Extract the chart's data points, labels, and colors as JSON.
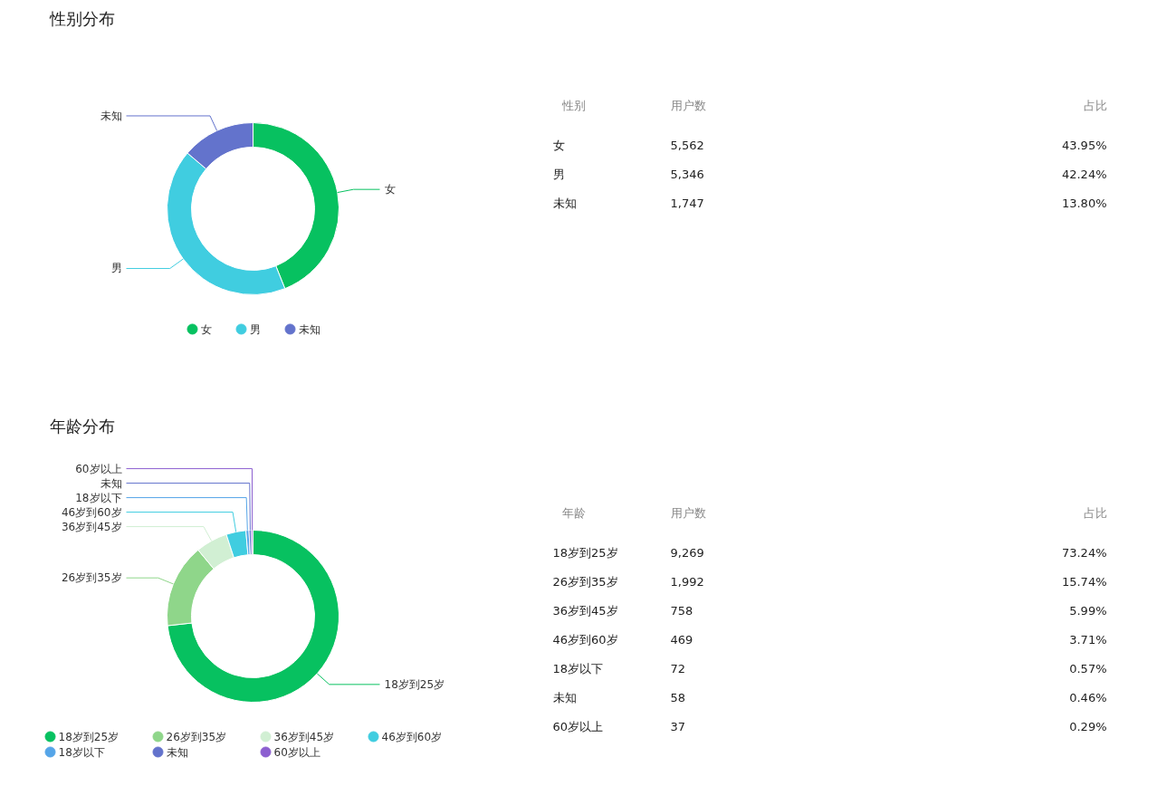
{
  "chart_data": [
    {
      "type": "donut",
      "title": "性别分布",
      "categories": [
        "女",
        "男",
        "未知"
      ],
      "values": [
        43.95,
        42.24,
        13.8
      ],
      "colors": [
        "#07c160",
        "#40cde0",
        "#6373cc"
      ],
      "legend": "bottom"
    },
    {
      "type": "other",
      "categories": [
        "女",
        "男",
        "未知"
      ],
      "annotations": [
        "性别"
      ],
      "data_labels": true,
      "series": [
        {
          "name": "用户数",
          "values": [
            5562,
            5346,
            1747
          ],
          "value_labels": [
            "5,562",
            "5,346",
            "1,747"
          ]
        },
        {
          "name": "占比",
          "values": [
            43.95,
            42.24,
            13.8
          ],
          "value_labels": [
            "43.95%",
            "42.24%",
            "13.80%"
          ]
        }
      ]
    },
    {
      "type": "donut",
      "title": "年龄分布",
      "categories": [
        "18岁到25岁",
        "26岁到35岁",
        "36岁到45岁",
        "46岁到60岁",
        "18岁以下",
        "未知",
        "60岁以上"
      ],
      "values": [
        73.24,
        15.74,
        5.99,
        3.71,
        0.57,
        0.46,
        0.29
      ],
      "colors": [
        "#07c160",
        "#8fd68a",
        "#d1efd3",
        "#40cde0",
        "#55a5e8",
        "#6373cc",
        "#8c5fd0"
      ],
      "legend": "bottom"
    },
    {
      "type": "other",
      "categories": [
        "18岁到25岁",
        "26岁到35岁",
        "36岁到45岁",
        "46岁到60岁",
        "18岁以下",
        "未知",
        "60岁以上"
      ],
      "annotations": [
        "年龄"
      ],
      "data_labels": true,
      "series": [
        {
          "name": "用户数",
          "values": [
            9269,
            1992,
            758,
            469,
            72,
            58,
            37
          ],
          "value_labels": [
            "9,269",
            "1,992",
            "758",
            "469",
            "72",
            "58",
            "37"
          ]
        },
        {
          "name": "占比",
          "values": [
            73.24,
            15.74,
            5.99,
            3.71,
            0.57,
            0.46,
            0.29
          ],
          "value_labels": [
            "73.24%",
            "15.74%",
            "5.99%",
            "3.71%",
            "0.57%",
            "0.46%",
            "0.29%"
          ]
        }
      ]
    }
  ]
}
